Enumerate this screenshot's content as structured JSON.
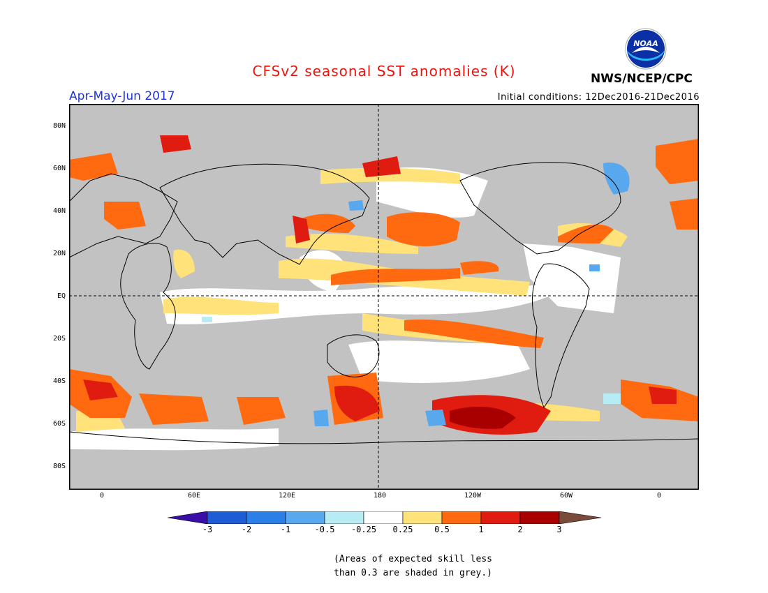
{
  "header": {
    "title": "CFSv2 seasonal SST anomalies (K)",
    "season": "Apr-May-Jun 2017",
    "initial_conditions": "Initial conditions: 12Dec2016-21Dec2016",
    "agency": "NWS/NCEP/CPC",
    "logo_text": "NOAA"
  },
  "map": {
    "lat_labels": [
      "80N",
      "60N",
      "40N",
      "20N",
      "EQ",
      "20S",
      "40S",
      "60S",
      "80S"
    ],
    "lon_labels": [
      "0",
      "60E",
      "120E",
      "180",
      "120W",
      "60W",
      "0"
    ],
    "grey_meaning": "low skill"
  },
  "colorbar": {
    "labels": [
      "-3",
      "-2",
      "-1",
      "-0.5",
      "-0.25",
      "0.25",
      "0.5",
      "1",
      "2",
      "3"
    ],
    "colors": [
      "#3a0fa8",
      "#1e5cd6",
      "#2c7fe6",
      "#58a8ee",
      "#b8ecf4",
      "#ffffff",
      "#ffe27a",
      "#ff6a10",
      "#e01c10",
      "#a80000",
      "#7a4a3a"
    ]
  },
  "note": {
    "line1": "(Areas of expected skill less",
    "line2": "than 0.3 are shaded in grey.)"
  }
}
